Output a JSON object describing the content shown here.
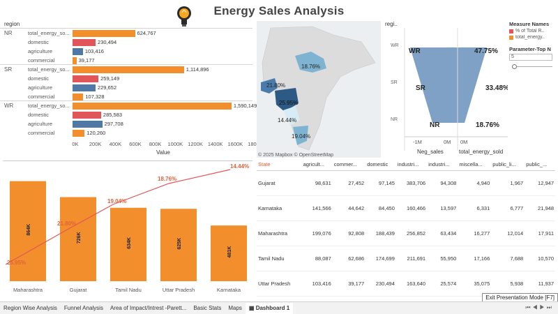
{
  "title": "Energy Sales Analysis",
  "region_chart": {
    "header": "region",
    "groups": [
      {
        "region": "NR",
        "rows": [
          {
            "label": "total_energy_so...",
            "value": 624767,
            "display": "624,767",
            "color": "#f28e2b"
          },
          {
            "label": "domestic",
            "value": 230494,
            "display": "230,494",
            "color": "#e15759"
          },
          {
            "label": "agriculture",
            "value": 103416,
            "display": "103,416",
            "color": "#4e79a7"
          },
          {
            "label": "commercial",
            "value": 39177,
            "display": "39,177",
            "color": "#f28e2b"
          }
        ]
      },
      {
        "region": "SR",
        "rows": [
          {
            "label": "total_energy_so...",
            "value": 1114896,
            "display": "1,114,896",
            "color": "#f28e2b"
          },
          {
            "label": "domestic",
            "value": 259149,
            "display": "259,149",
            "color": "#e15759"
          },
          {
            "label": "agriculture",
            "value": 229652,
            "display": "229,652",
            "color": "#4e79a7"
          },
          {
            "label": "commercial",
            "value": 107328,
            "display": "107,328",
            "color": "#f28e2b"
          }
        ]
      },
      {
        "region": "WR",
        "rows": [
          {
            "label": "total_energy_so...",
            "value": 1590149,
            "display": "1,590,149",
            "color": "#f28e2b"
          },
          {
            "label": "domestic",
            "value": 285583,
            "display": "285,583",
            "color": "#e15759"
          },
          {
            "label": "agriculture",
            "value": 297708,
            "display": "297,708",
            "color": "#4e79a7"
          },
          {
            "label": "commercial",
            "value": 120260,
            "display": "120,260",
            "color": "#f28e2b"
          }
        ]
      }
    ],
    "axis_ticks": [
      "0K",
      "200K",
      "400K",
      "600K",
      "800K",
      "1000K",
      "1200K",
      "1400K",
      "1600K",
      "1800K"
    ],
    "axis_max": 1800000,
    "axis_title": "Value"
  },
  "map": {
    "labels": [
      "18.76%",
      "21.80%",
      "25.95%",
      "14.44%",
      "19.04%"
    ],
    "credit": "© 2025 Mapbox © OpenStreetMap"
  },
  "funnel": {
    "header": "regi..",
    "rows": [
      {
        "region": "WR",
        "pct": "47.75%",
        "neg": "WR"
      },
      {
        "region": "SR",
        "pct": "33.48%",
        "neg": "SR"
      },
      {
        "region": "NR",
        "pct": "18.76%",
        "neg": "NR"
      }
    ],
    "axis_ticks": [
      "-1M",
      "0M",
      "0M"
    ],
    "axis_titles": [
      "Neg_sales",
      "total_energy_sold"
    ],
    "color": "#7fa1c6"
  },
  "legend": {
    "title": "Measure Names",
    "items": [
      {
        "label": "% of Total R..",
        "color": "#e15759"
      },
      {
        "label": "total_energy..",
        "color": "#f28e2b"
      }
    ]
  },
  "parameter": {
    "title": "Parameter-Top N",
    "value": "5"
  },
  "chart_data": {
    "type": "bar",
    "categories": [
      "Maharashtra",
      "Gujarat",
      "Tamil Nadu",
      "Uttar Pradesh",
      "Karnataka"
    ],
    "series": [
      {
        "values": [
          864000,
          726000,
          634000,
          625000,
          481000
        ],
        "labels": [
          "864K",
          "726K",
          "634K",
          "625K",
          "481K"
        ],
        "color": "#f28e2b"
      },
      {
        "values": [
          25.95,
          21.8,
          19.04,
          18.76,
          14.44
        ],
        "labels": [
          "25.95%",
          "21.80%",
          "19.04%",
          "18.76%",
          "14.44%"
        ],
        "color": "#e15759"
      }
    ],
    "ylim": [
      0,
      1000000
    ]
  },
  "table": {
    "columns": [
      "State",
      "agricult...",
      "commer...",
      "domestic",
      "industri...",
      "industri...",
      "miscella...",
      "public_li...",
      "public_..."
    ],
    "rows": [
      [
        "Gujarat",
        "98,631",
        "27,452",
        "97,145",
        "383,706",
        "94,308",
        "4,940",
        "1,967",
        "12,947"
      ],
      [
        "Karnataka",
        "141,566",
        "44,642",
        "84,450",
        "160,466",
        "13,597",
        "6,331",
        "6,777",
        "21,948"
      ],
      [
        "Maharashtra",
        "199,076",
        "92,808",
        "188,439",
        "256,852",
        "63,434",
        "16,277",
        "12,014",
        "17,911"
      ],
      [
        "Tamil Nadu",
        "88,087",
        "62,686",
        "174,699",
        "211,691",
        "55,950",
        "17,166",
        "7,688",
        "10,570"
      ],
      [
        "Uttar Pradesh",
        "103,416",
        "39,177",
        "230,494",
        "163,640",
        "25,574",
        "35,075",
        "5,938",
        "11,937"
      ]
    ]
  },
  "tabs": [
    "Region Wise Analysis",
    "Funnel Analysis",
    "Area of Impact/Intrest -Parett...",
    "Basic Stats",
    "Maps",
    "Dashboard 1"
  ],
  "active_tab": "Dashboard 1",
  "exit_label": "Exit Presentation Mode [F7]"
}
